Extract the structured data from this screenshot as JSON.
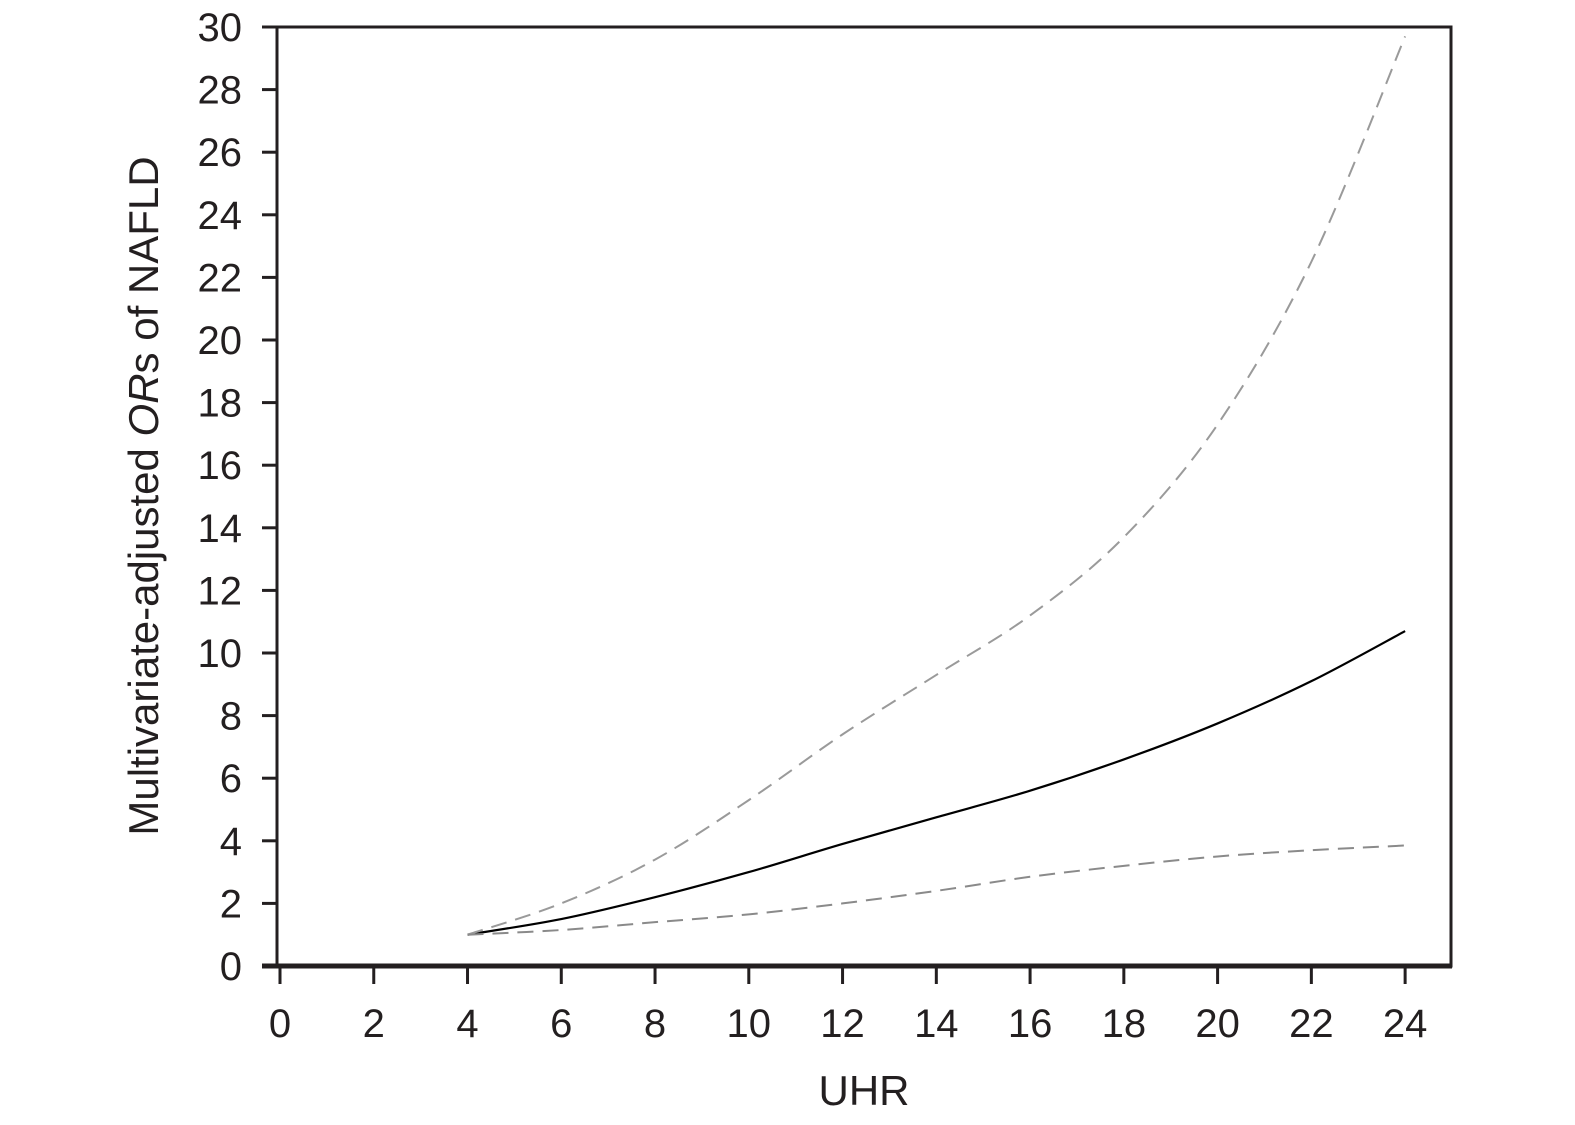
{
  "chart_data": {
    "type": "line",
    "xlabel": "UHR",
    "ylabel_parts": [
      "Multivariate-adjusted ",
      "OR",
      "s of NAFLD"
    ],
    "xlim": [
      0,
      25
    ],
    "ylim": [
      0,
      30
    ],
    "x_ticks": [
      0,
      2,
      4,
      6,
      8,
      10,
      12,
      14,
      16,
      18,
      20,
      22,
      24
    ],
    "y_ticks": [
      0,
      2,
      4,
      6,
      8,
      10,
      12,
      14,
      16,
      18,
      20,
      22,
      24,
      26,
      28,
      30
    ],
    "grid": false,
    "x": [
      4,
      6,
      8,
      10,
      12,
      14,
      16,
      18,
      20,
      22,
      24
    ],
    "series": [
      {
        "style": "solid",
        "color": "#000000",
        "values": [
          1.0,
          1.5,
          2.2,
          3.0,
          3.9,
          4.75,
          5.6,
          6.6,
          7.75,
          9.1,
          10.7
        ]
      },
      {
        "style": "dashed",
        "color": "#9a9a9a",
        "values": [
          1.0,
          2.0,
          3.4,
          5.3,
          7.4,
          9.3,
          11.2,
          13.7,
          17.3,
          22.5,
          29.7
        ]
      },
      {
        "style": "dashed",
        "color": "#8a8a8a",
        "values": [
          1.0,
          1.15,
          1.4,
          1.65,
          2.0,
          2.4,
          2.85,
          3.2,
          3.5,
          3.7,
          3.85
        ]
      }
    ]
  }
}
